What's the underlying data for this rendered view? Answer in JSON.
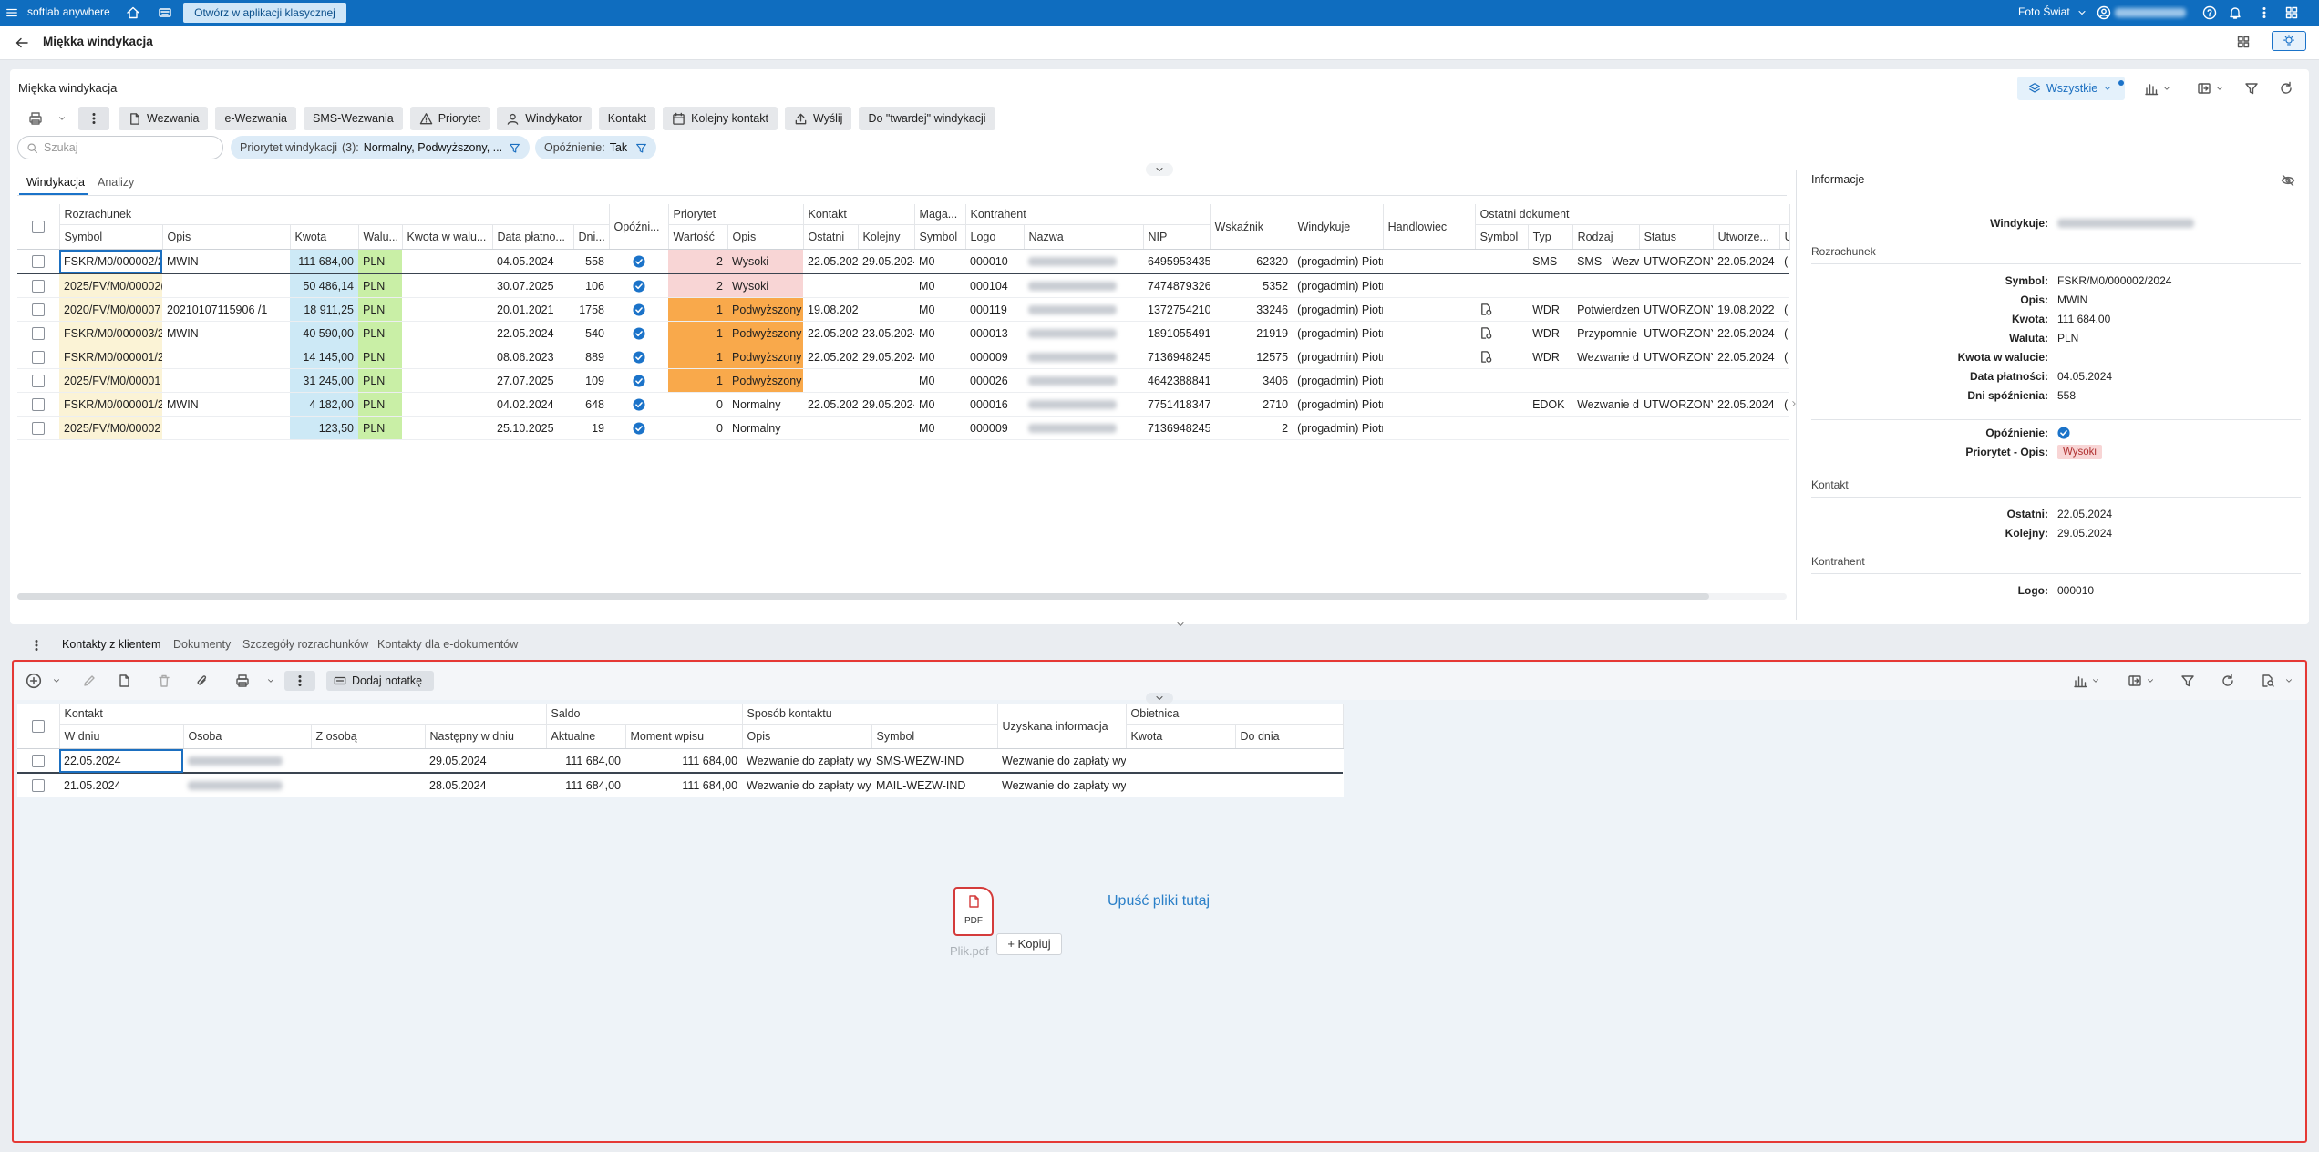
{
  "topbar": {
    "app_name": "softlab anywhere",
    "open_classic": "Otwórz w aplikacji klasycznej",
    "company": "Foto Świat"
  },
  "header": {
    "title": "Miękka windykacja"
  },
  "panel": {
    "title": "Miękka windykacja",
    "view_filter": "Wszystkie",
    "toolbar": [
      "Wezwania",
      "e-Wezwania",
      "SMS-Wezwania",
      "Priorytet",
      "Windykator",
      "Kontakt",
      "Kolejny kontakt",
      "Wyślij",
      "Do \"twardej\" windykacji"
    ],
    "search_placeholder": "Szukaj",
    "filters": [
      {
        "label": "Priorytet windykacji",
        "count": "(3):",
        "value": "Normalny, Podwyższony, ..."
      },
      {
        "label": "Opóźnienie:",
        "value": "Tak"
      }
    ],
    "tabs": [
      "Windykacja",
      "Analizy"
    ],
    "active_tab": 0
  },
  "grid": {
    "groups": [
      {
        "label": "Rozrachunek",
        "span": 7
      },
      {
        "label": null,
        "span": 1
      },
      {
        "label": "Priorytet",
        "span": 2
      },
      {
        "label": "Kontakt",
        "span": 2
      },
      {
        "label": "Maga...",
        "span": 1
      },
      {
        "label": "Kontrahent",
        "span": 3
      },
      {
        "label": null,
        "span": 1
      },
      {
        "label": null,
        "span": 1
      },
      {
        "label": null,
        "span": 1
      },
      {
        "label": "Ostatni dokument",
        "span": 6
      }
    ],
    "columns": [
      {
        "label": "Symbol",
        "color": "#fbf3d6"
      },
      {
        "label": "Opis"
      },
      {
        "label": "Kwota",
        "color": "#cde9f6"
      },
      {
        "label": "Walu..."
      },
      {
        "label": "Kwota w walu..."
      },
      {
        "label": "Data płatno..."
      },
      {
        "label": "Dni..."
      },
      {
        "label": "Opóźni..."
      },
      {
        "label": "Wartość"
      },
      {
        "label": "Opis"
      },
      {
        "label": "Ostatni"
      },
      {
        "label": "Kolejny"
      },
      {
        "label": "Symbol"
      },
      {
        "label": "Logo"
      },
      {
        "label": "Nazwa"
      },
      {
        "label": "NIP"
      },
      {
        "label": "Wskaźnik"
      },
      {
        "label": "Windykuje"
      },
      {
        "label": "Handlowiec"
      },
      {
        "label": "Symbol"
      },
      {
        "label": "Typ"
      },
      {
        "label": "Rodzaj"
      },
      {
        "label": "Status"
      },
      {
        "label": "Utworze..."
      },
      {
        "label": "U"
      }
    ],
    "currency_color": "#c9efa6",
    "selected_row": 0,
    "rows": [
      {
        "overdue": true,
        "doc_icon": false,
        "priority_color": "#f8d5d5",
        "cells": [
          "FSKR/M0/000002/2",
          "MWIN",
          "111 684,00",
          "PLN",
          null,
          "04.05.2024",
          "558",
          null,
          "2",
          "Wysoki",
          "22.05.202",
          "29.05.2024",
          "M0",
          "000010",
          null,
          "6495953435",
          "62320",
          "(progadmin) Piotr",
          null,
          null,
          "SMS",
          "SMS - Wezw",
          "UTWORZONY",
          "22.05.2024",
          "("
        ]
      },
      {
        "overdue": true,
        "doc_icon": false,
        "priority_color": "#f8d5d5",
        "cells": [
          "2025/FV/M0/00002(",
          null,
          "50 486,14",
          "PLN",
          null,
          "30.07.2025",
          "106",
          null,
          "2",
          "Wysoki",
          null,
          null,
          "M0",
          "000104",
          null,
          "7474879326",
          "5352",
          "(progadmin) Piotr",
          null,
          null,
          null,
          null,
          null,
          null,
          null
        ]
      },
      {
        "overdue": true,
        "doc_icon": true,
        "priority_color": "#f9a94b",
        "cells": [
          "2020/FV/M0/00007",
          "20210107115906 /1",
          "18 911,25",
          "PLN",
          null,
          "20.01.2021",
          "1758",
          null,
          "1",
          "Podwyższony",
          "19.08.202",
          null,
          "M0",
          "000119",
          null,
          "1372754210",
          "33246",
          "(progadmin) Piotr",
          null,
          null,
          "WDR",
          "Potwierdzen",
          "UTWORZONY",
          "19.08.2022",
          "("
        ]
      },
      {
        "overdue": true,
        "doc_icon": true,
        "priority_color": "#f9a94b",
        "cells": [
          "FSKR/M0/000003/2(",
          "MWIN",
          "40 590,00",
          "PLN",
          null,
          "22.05.2024",
          "540",
          null,
          "1",
          "Podwyższony",
          "22.05.202",
          "23.05.2024",
          "M0",
          "000013",
          null,
          "1891055491",
          "21919",
          "(progadmin) Piotr",
          null,
          null,
          "WDR",
          "Przypomnie",
          "UTWORZONY",
          "22.05.2024",
          "("
        ]
      },
      {
        "overdue": true,
        "doc_icon": true,
        "priority_color": "#f9a94b",
        "cells": [
          "FSKR/M0/000001/2(",
          null,
          "14 145,00",
          "PLN",
          null,
          "08.06.2023",
          "889",
          null,
          "1",
          "Podwyższony",
          "22.05.202",
          "29.05.2024",
          "M0",
          "000009",
          null,
          "7136948245",
          "12575",
          "(progadmin) Piotr",
          null,
          null,
          "WDR",
          "Wezwanie d",
          "UTWORZONY",
          "22.05.2024",
          "("
        ]
      },
      {
        "overdue": true,
        "doc_icon": false,
        "priority_color": "#f9a94b",
        "cells": [
          "2025/FV/M0/00001",
          null,
          "31 245,00",
          "PLN",
          null,
          "27.07.2025",
          "109",
          null,
          "1",
          "Podwyższony",
          null,
          null,
          "M0",
          "000026",
          null,
          "4642388841",
          "3406",
          "(progadmin) Piotr",
          null,
          null,
          null,
          null,
          null,
          null,
          null
        ]
      },
      {
        "overdue": true,
        "doc_icon": false,
        "priority_color": null,
        "cells": [
          "FSKR/M0/000001/2(",
          "MWIN",
          "4 182,00",
          "PLN",
          null,
          "04.02.2024",
          "648",
          null,
          "0",
          "Normalny",
          "22.05.202",
          "29.05.2024",
          "M0",
          "000016",
          null,
          "7751418347",
          "2710",
          "(progadmin) Piotr",
          null,
          null,
          "EDOK",
          "Wezwanie d",
          "UTWORZONY",
          "22.05.2024",
          "("
        ]
      },
      {
        "overdue": true,
        "doc_icon": false,
        "priority_color": null,
        "cells": [
          "2025/FV/M0/00002",
          null,
          "123,50",
          "PLN",
          null,
          "25.10.2025",
          "19",
          null,
          "0",
          "Normalny",
          null,
          null,
          "M0",
          "000009",
          null,
          "7136948245",
          "2",
          "(progadmin) Piotr",
          null,
          null,
          null,
          null,
          null,
          null,
          null
        ]
      }
    ]
  },
  "info": {
    "title": "Informacje",
    "assignee_label": "Windykuje:",
    "sections": [
      {
        "title": "Rozrachunek",
        "fields": [
          {
            "label": "Symbol:",
            "value": "FSKR/M0/000002/2024"
          },
          {
            "label": "Opis:",
            "value": "MWIN"
          },
          {
            "label": "Kwota:",
            "value": "111 684,00"
          },
          {
            "label": "Waluta:",
            "value": "PLN"
          },
          {
            "label": "Kwota w walucie:",
            "value": null
          },
          {
            "label": "Data płatności:",
            "value": "04.05.2024"
          },
          {
            "label": "Dni spóźnienia:",
            "value": "558"
          }
        ]
      },
      {
        "title": null,
        "fields": [
          {
            "label": "Opóźnienie:",
            "value": null,
            "check": true
          },
          {
            "label": "Priorytet - Opis:",
            "value": "Wysoki",
            "color": "#f8d5d5"
          }
        ]
      },
      {
        "title": "Kontakt",
        "fields": [
          {
            "label": "Ostatni:",
            "value": "22.05.2024"
          },
          {
            "label": "Kolejny:",
            "value": "29.05.2024"
          }
        ]
      },
      {
        "title": "Kontrahent",
        "fields": [
          {
            "label": "Logo:",
            "value": "000010"
          }
        ]
      }
    ]
  },
  "bottom": {
    "tabs": [
      "Kontakty z klientem",
      "Dokumenty",
      "Szczegóły rozrachunków",
      "Kontakty dla e-dokumentów"
    ],
    "active_tab": 0,
    "add_note": "Dodaj notatkę",
    "grid": {
      "groups": [
        {
          "label": "Kontakt",
          "span": 4
        },
        {
          "label": "Saldo",
          "span": 2
        },
        {
          "label": "Sposób kontaktu",
          "span": 2
        },
        {
          "label": null,
          "span": 1
        },
        {
          "label": "Obietnica",
          "span": 2
        }
      ],
      "columns": [
        {
          "label": "W dniu"
        },
        {
          "label": "Osoba"
        },
        {
          "label": "Z osobą"
        },
        {
          "label": "Następny w dniu"
        },
        {
          "label": "Aktualne"
        },
        {
          "label": "Moment wpisu"
        },
        {
          "label": "Opis"
        },
        {
          "label": "Symbol"
        },
        {
          "label": "Uzyskana informacja"
        },
        {
          "label": "Kwota"
        },
        {
          "label": "Do dnia"
        }
      ],
      "selected_row": 0,
      "rows": [
        {
          "cells": [
            "22.05.2024",
            null,
            null,
            "29.05.2024",
            "111 684,00",
            "111 684,00",
            "Wezwanie do zapłaty wys",
            "SMS-WEZW-IND",
            "Wezwanie do zapłaty wys",
            null,
            null
          ]
        },
        {
          "cells": [
            "21.05.2024",
            null,
            null,
            "28.05.2024",
            "111 684,00",
            "111 684,00",
            "Wezwanie do zapłaty wys",
            "MAIL-WEZW-IND",
            "Wezwanie do zapłaty wys",
            null,
            null
          ]
        }
      ]
    },
    "dropzone": {
      "file_type": "PDF",
      "file_name": "Plik.pdf",
      "copy": "+ Kopiuj",
      "hint": "Upuść pliki tutaj"
    }
  }
}
